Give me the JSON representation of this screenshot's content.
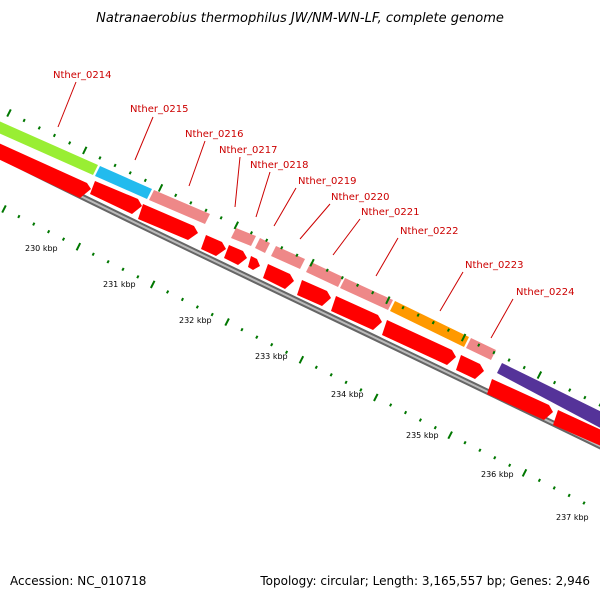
{
  "title": "Natranaerobius thermophilus JW/NM-WN-LF, complete genome",
  "accession_text": "Accession: NC_010718",
  "topology_text": "Topology: circular; Length: 3,165,557 bp; Genes: 2,946",
  "kbp_labels": [
    "230 kbp",
    "231 kbp",
    "232 kbp",
    "233 kbp",
    "234 kbp",
    "235 kbp",
    "236 kbp",
    "237 kbp"
  ],
  "gene_labels": [
    "Nther_0214",
    "Nther_0215",
    "Nther_0216",
    "Nther_0217",
    "Nther_0218",
    "Nther_0219",
    "Nther_0220",
    "Nther_0221",
    "Nther_0222",
    "Nther_0223",
    "Nther_0224"
  ],
  "colors": {
    "gene_label": "#cc0000",
    "cds_red": "#ff0000",
    "cog_green": "#99ee33",
    "cog_cyan": "#22bbee",
    "cog_pink": "#ee8888",
    "cog_orange": "#ff9900",
    "cog_purple": "#553399",
    "tick_green": "#007700",
    "backbone_gray": "#888888"
  }
}
